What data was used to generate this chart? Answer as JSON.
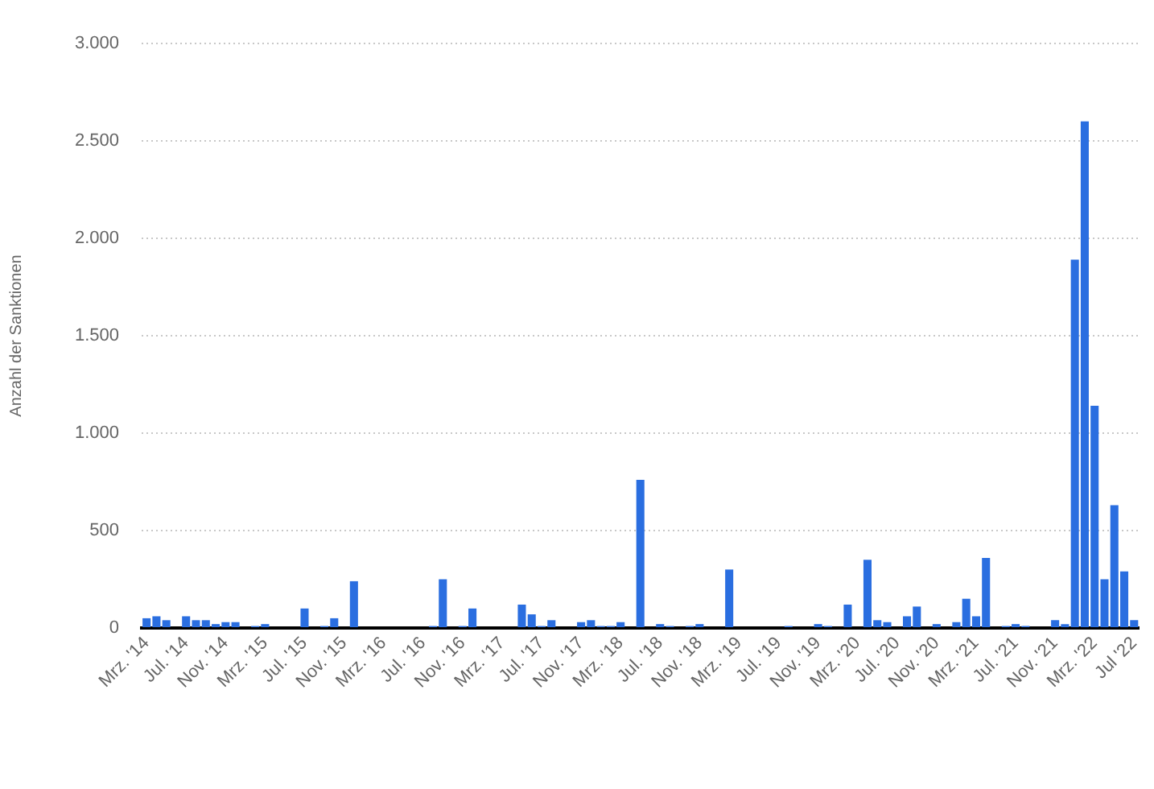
{
  "chart_data": {
    "type": "bar",
    "ylabel": "Anzahl der Sanktionen",
    "categories": [
      "Mrz. '14",
      null,
      null,
      null,
      "Jul. '14",
      null,
      null,
      null,
      "Nov. '14",
      null,
      null,
      null,
      "Mrz. '15",
      null,
      null,
      null,
      "Jul. '15",
      null,
      null,
      null,
      "Nov. '15",
      null,
      null,
      null,
      "Mrz. '16",
      null,
      null,
      null,
      "Jul. '16",
      null,
      null,
      null,
      "Nov. '16",
      null,
      null,
      null,
      "Mrz. '17",
      null,
      null,
      null,
      "Jul. '17",
      null,
      null,
      null,
      "Nov. '17",
      null,
      null,
      null,
      "Mrz. '18",
      null,
      null,
      null,
      "Jul. '18",
      null,
      null,
      null,
      "Nov. '18",
      null,
      null,
      null,
      "Mrz. '19",
      null,
      null,
      null,
      "Jul. '19",
      null,
      null,
      null,
      "Nov. '19",
      null,
      null,
      null,
      "Mrz. '20",
      null,
      null,
      null,
      "Jul. '20",
      null,
      null,
      null,
      "Nov. '20",
      null,
      null,
      null,
      "Mrz. '21",
      null,
      null,
      null,
      "Jul. '21",
      null,
      null,
      null,
      "Nov. '21",
      null,
      null,
      null,
      "Mrz. '22",
      null,
      null,
      null,
      "Jul '22"
    ],
    "values": [
      50,
      60,
      40,
      0,
      60,
      40,
      40,
      20,
      30,
      30,
      0,
      10,
      20,
      0,
      0,
      0,
      100,
      0,
      10,
      50,
      0,
      240,
      0,
      0,
      0,
      0,
      0,
      0,
      0,
      10,
      250,
      0,
      10,
      100,
      0,
      0,
      0,
      0,
      120,
      70,
      10,
      40,
      0,
      0,
      30,
      40,
      10,
      10,
      30,
      0,
      760,
      0,
      20,
      10,
      0,
      10,
      20,
      0,
      0,
      300,
      0,
      0,
      0,
      0,
      0,
      10,
      0,
      0,
      20,
      10,
      0,
      120,
      0,
      350,
      40,
      30,
      0,
      60,
      110,
      0,
      20,
      0,
      30,
      150,
      60,
      360,
      0,
      10,
      20,
      10,
      0,
      0,
      40,
      20,
      1890,
      2600,
      1140,
      250,
      630,
      290,
      40
    ],
    "color": "#2a6ee0",
    "ylim": [
      0,
      3000
    ],
    "yticks": [
      0,
      {
        "value": 500,
        "label": "500"
      },
      {
        "value": 1000,
        "label": "1.000"
      },
      {
        "value": 1500,
        "label": "1.500"
      },
      {
        "value": 2000,
        "label": "2.000"
      },
      {
        "value": 2500,
        "label": "2.500"
      },
      {
        "value": 3000,
        "label": "3.000"
      }
    ],
    "grid": "y",
    "legend": false
  }
}
